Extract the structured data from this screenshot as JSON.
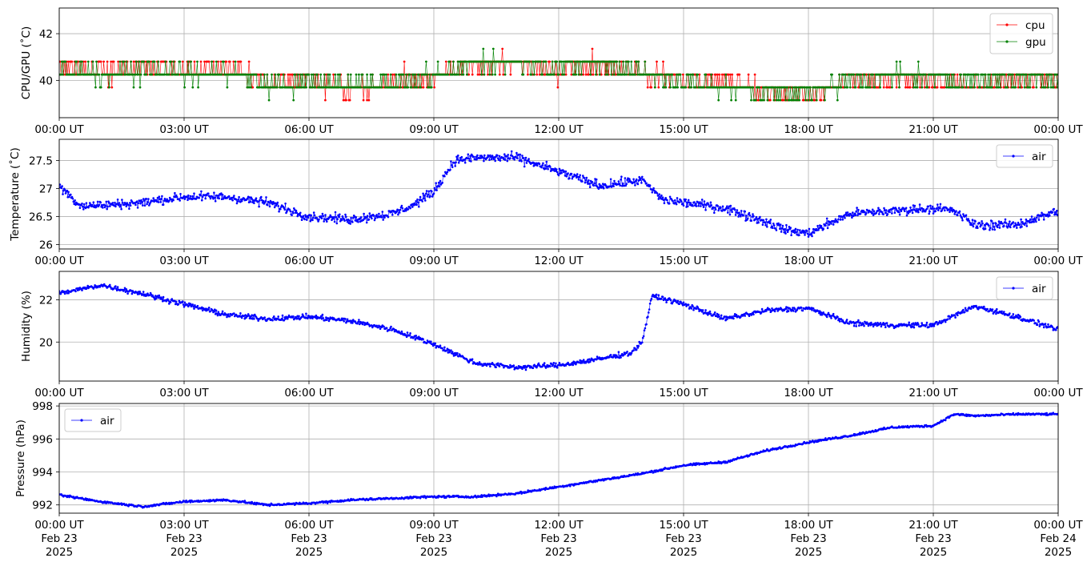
{
  "x_ticks": [
    "00:00 UT",
    "03:00 UT",
    "06:00 UT",
    "09:00 UT",
    "12:00 UT",
    "15:00 UT",
    "18:00 UT",
    "21:00 UT",
    "00:00 UT"
  ],
  "x_tick_dates": [
    "Feb 23",
    "Feb 23",
    "Feb 23",
    "Feb 23",
    "Feb 23",
    "Feb 23",
    "Feb 23",
    "Feb 23",
    "Feb 24"
  ],
  "x_tick_years": [
    "2025",
    "2025",
    "2025",
    "2025",
    "2025",
    "2025",
    "2025",
    "2025",
    "2025"
  ],
  "colors": {
    "cpu": "#ff0000",
    "gpu": "#008000",
    "air": "#0000ff",
    "grid": "#b0b0b0"
  },
  "chart_data": [
    {
      "type": "line",
      "ylabel": "CPU/GPU (˚C)",
      "xlim": [
        "2025-02-23T00:00",
        "2025-02-24T00:00"
      ],
      "ylim": [
        38.4,
        43.1
      ],
      "yticks": [
        40,
        42
      ],
      "grid": true,
      "legend": "top-right",
      "series": [
        {
          "name": "cpu",
          "color": "#ff0000",
          "x": [
            "00:00",
            "01:00",
            "02:00",
            "03:00",
            "04:00",
            "05:00",
            "06:00",
            "07:00",
            "08:00",
            "09:00",
            "10:00",
            "11:00",
            "12:00",
            "13:00",
            "14:00",
            "15:00",
            "16:00",
            "17:00",
            "18:00",
            "19:00",
            "20:00",
            "21:00",
            "22:00",
            "23:00",
            "24:00"
          ],
          "values": [
            40.6,
            40.3,
            40.6,
            40.4,
            40.5,
            40.0,
            40.0,
            39.6,
            39.9,
            40.1,
            40.7,
            40.7,
            40.4,
            40.6,
            40.4,
            40.0,
            40.0,
            39.5,
            39.4,
            40.0,
            40.1,
            40.0,
            39.8,
            40.0,
            40.0
          ]
        },
        {
          "name": "gpu",
          "color": "#008000",
          "x": [
            "00:00",
            "01:00",
            "02:00",
            "03:00",
            "04:00",
            "05:00",
            "06:00",
            "07:00",
            "08:00",
            "09:00",
            "10:00",
            "11:00",
            "12:00",
            "13:00",
            "14:00",
            "15:00",
            "16:00",
            "17:00",
            "18:00",
            "19:00",
            "20:00",
            "21:00",
            "22:00",
            "23:00",
            "24:00"
          ],
          "values": [
            40.4,
            40.2,
            40.5,
            40.3,
            40.4,
            39.8,
            39.9,
            39.8,
            40.0,
            40.1,
            40.8,
            40.8,
            40.6,
            40.7,
            40.4,
            39.9,
            39.7,
            39.5,
            39.5,
            40.0,
            40.2,
            40.1,
            40.0,
            40.1,
            40.1
          ]
        }
      ]
    },
    {
      "type": "line",
      "ylabel": "Temperature (˚C)",
      "xlim": [
        "2025-02-23T00:00",
        "2025-02-24T00:00"
      ],
      "ylim": [
        25.92,
        27.88
      ],
      "yticks": [
        26.0,
        26.5,
        27.0,
        27.5
      ],
      "grid": true,
      "legend": "top-right",
      "series": [
        {
          "name": "air",
          "color": "#0000ff",
          "x": [
            "00:00",
            "00:30",
            "01:00",
            "02:00",
            "03:00",
            "04:00",
            "05:00",
            "06:00",
            "07:00",
            "08:00",
            "08:30",
            "09:00",
            "09:30",
            "10:00",
            "11:00",
            "12:00",
            "13:00",
            "14:00",
            "14:30",
            "15:00",
            "16:00",
            "17:00",
            "17:30",
            "18:00",
            "19:00",
            "20:00",
            "21:00",
            "21:30",
            "22:00",
            "23:00",
            "24:00"
          ],
          "values": [
            27.05,
            26.7,
            26.7,
            26.75,
            26.85,
            26.85,
            26.75,
            26.5,
            26.45,
            26.55,
            26.7,
            26.95,
            27.5,
            27.55,
            27.55,
            27.3,
            27.05,
            27.15,
            26.8,
            26.75,
            26.65,
            26.4,
            26.25,
            26.2,
            26.55,
            26.6,
            26.65,
            26.6,
            26.35,
            26.35,
            26.6
          ]
        }
      ]
    },
    {
      "type": "line",
      "ylabel": "Humidity (%)",
      "xlim": [
        "2025-02-23T00:00",
        "2025-02-24T00:00"
      ],
      "ylim": [
        18.15,
        23.35
      ],
      "yticks": [
        20,
        22
      ],
      "grid": true,
      "legend": "top-right",
      "series": [
        {
          "name": "air",
          "color": "#0000ff",
          "x": [
            "00:00",
            "01:00",
            "02:00",
            "03:00",
            "04:00",
            "05:00",
            "06:00",
            "07:00",
            "08:00",
            "09:00",
            "10:00",
            "11:00",
            "12:00",
            "13:00",
            "13:45",
            "14:00",
            "14:15",
            "15:00",
            "16:00",
            "17:00",
            "18:00",
            "19:00",
            "20:00",
            "21:00",
            "22:00",
            "23:00",
            "24:00"
          ],
          "values": [
            22.3,
            22.7,
            22.3,
            21.8,
            21.3,
            21.1,
            21.2,
            21.0,
            20.6,
            19.9,
            19.0,
            18.8,
            18.9,
            19.2,
            19.5,
            20.0,
            22.2,
            21.8,
            21.1,
            21.5,
            21.6,
            20.9,
            20.8,
            20.8,
            21.7,
            21.2,
            20.6
          ]
        }
      ]
    },
    {
      "type": "line",
      "ylabel": "Pressure (hPa)",
      "xlim": [
        "2025-02-23T00:00",
        "2025-02-24T00:00"
      ],
      "ylim": [
        991.5,
        998.15
      ],
      "yticks": [
        992,
        994,
        996,
        998
      ],
      "grid": true,
      "legend": "top-left",
      "series": [
        {
          "name": "air",
          "color": "#0000ff",
          "x": [
            "00:00",
            "01:00",
            "02:00",
            "03:00",
            "04:00",
            "05:00",
            "06:00",
            "07:00",
            "08:00",
            "09:00",
            "10:00",
            "11:00",
            "12:00",
            "13:00",
            "14:00",
            "15:00",
            "16:00",
            "17:00",
            "18:00",
            "19:00",
            "20:00",
            "21:00",
            "21:30",
            "22:00",
            "23:00",
            "24:00"
          ],
          "values": [
            992.6,
            992.2,
            991.9,
            992.2,
            992.3,
            992.0,
            992.1,
            992.3,
            992.4,
            992.5,
            992.5,
            992.7,
            993.1,
            993.5,
            993.9,
            994.4,
            994.6,
            995.3,
            995.8,
            996.2,
            996.7,
            996.8,
            997.5,
            997.4,
            997.5,
            997.5
          ]
        }
      ]
    }
  ]
}
